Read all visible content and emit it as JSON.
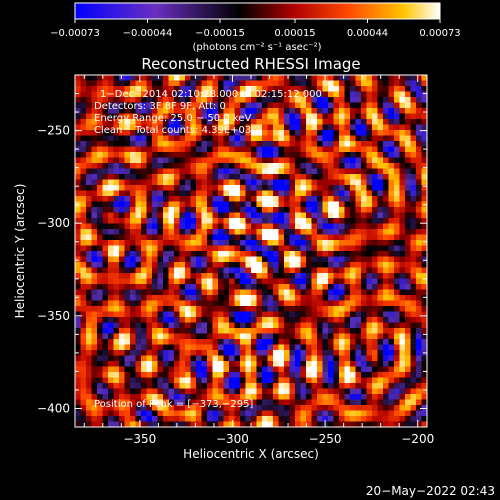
{
  "chart_data": {
    "type": "heatmap",
    "title": "Reconstructed RHESSI Image",
    "xlabel": "Heliocentric X (arcsec)",
    "ylabel": "Heliocentric Y (arcsec)",
    "xlim": [
      -385,
      -195
    ],
    "ylim": [
      -410,
      -220
    ],
    "x_ticks": [
      -350,
      -300,
      -250,
      -200
    ],
    "x_tick_labels": [
      "−350",
      "−300",
      "−250",
      "−200"
    ],
    "y_ticks": [
      -250,
      -300,
      -350,
      -400
    ],
    "y_tick_labels": [
      "−250",
      "−300",
      "−350",
      "−400"
    ],
    "annotations": [
      "1−Dec−2014 02:10:28.000 to 02:15:12.000",
      "Detectors: 3F 8F 9F, Att: 0",
      "Energy Range: 25.0 − 50.0 keV",
      "Clean    Total counts: 4.39E+03"
    ],
    "peak_label": "Position of Peak = [−373,−295]",
    "colorbar": {
      "min": -0.00073,
      "max": 0.00073,
      "tick_values": [
        -0.00073,
        -0.00044,
        -0.00015,
        0.00015,
        0.00044,
        0.00073
      ],
      "tick_labels": [
        "−0.00073",
        "−0.00044",
        "−0.00015",
        "0.00015",
        "0.00044",
        "0.00073"
      ],
      "unit_label": "(photons cm⁻² s⁻¹ asec⁻²)"
    },
    "grid": false,
    "colormap": "blue-purple-black-red-orange-yellow-white"
  },
  "footer": {
    "date_stamp": "20−May−2022 02:43"
  },
  "colors": {
    "background": "#000000",
    "foreground": "#ffffff",
    "colormap_stops": [
      "#0000ff",
      "#5a2fb5",
      "#000000",
      "#b00000",
      "#ff4000",
      "#ffc000",
      "#ffffff"
    ]
  }
}
